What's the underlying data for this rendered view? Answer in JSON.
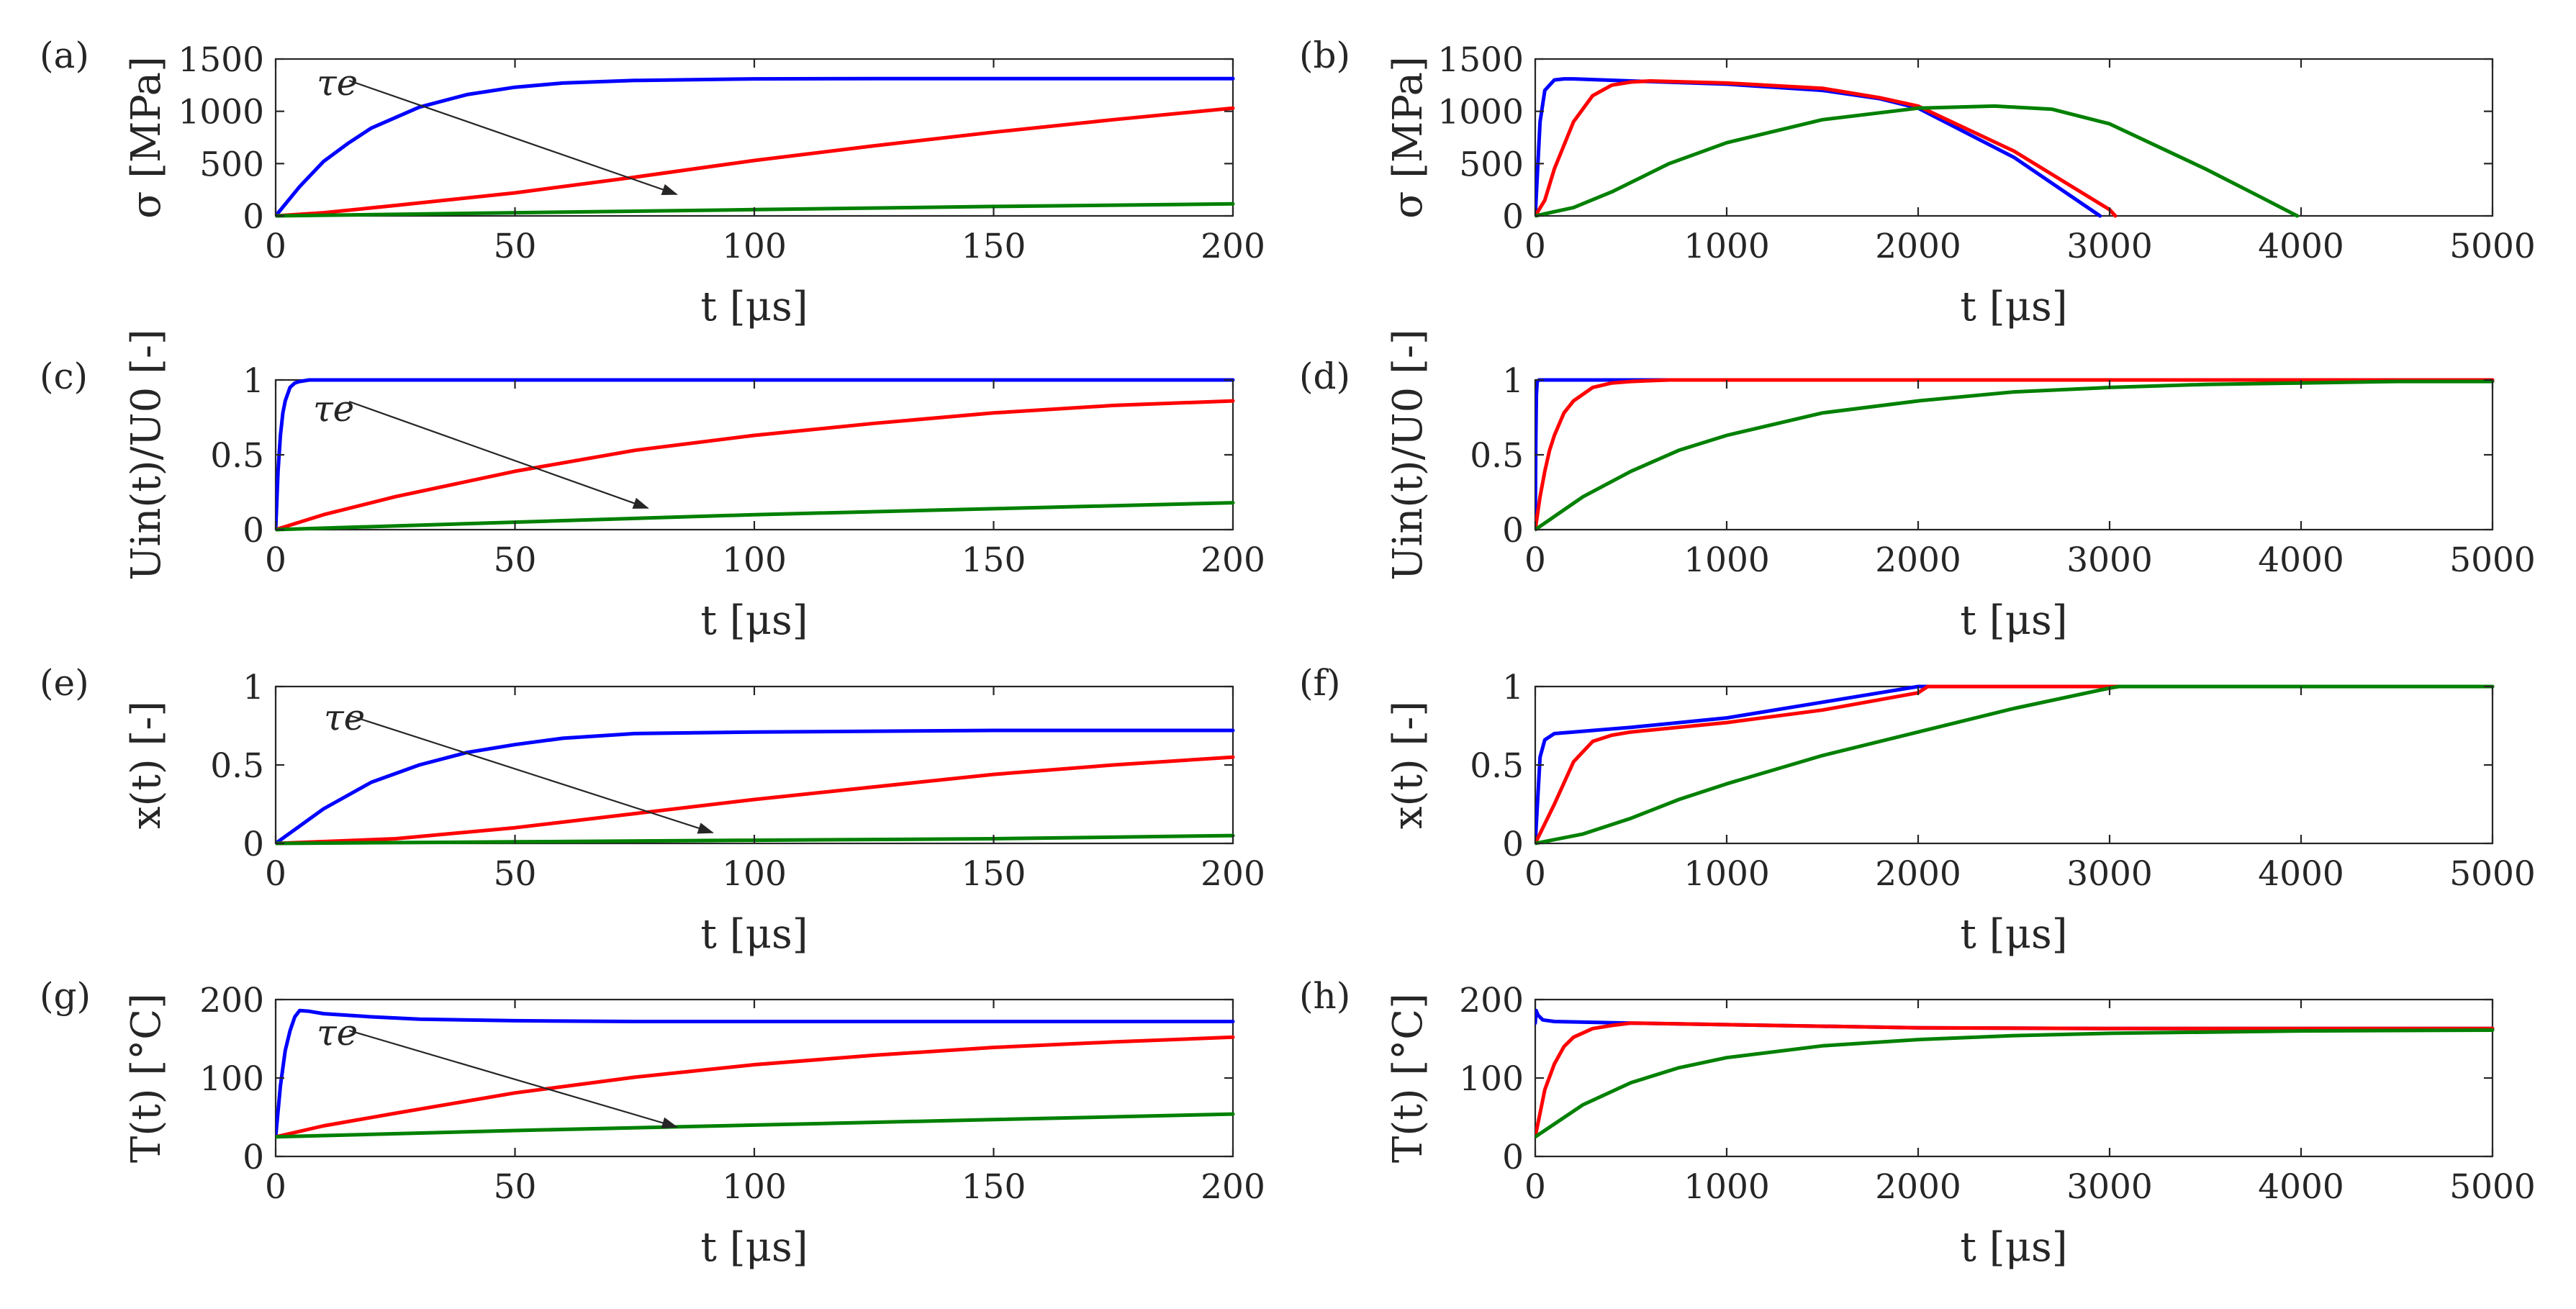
{
  "figure": {
    "series_colors": [
      "#0000ff",
      "#ff0000",
      "#008000"
    ]
  },
  "chart_data": [
    {
      "panel": "(a)",
      "type": "line",
      "xlabel": "t [μs]",
      "ylabel": "σ [MPa]",
      "xlim": [
        0,
        200
      ],
      "ylim": [
        0,
        1500
      ],
      "xticks": [
        0,
        50,
        100,
        150,
        200
      ],
      "yticks": [
        0,
        500,
        1000,
        1500
      ],
      "annotation": "τe",
      "series": [
        {
          "name": "blue",
          "color": "#0000ff",
          "x": [
            0,
            5,
            10,
            15,
            20,
            30,
            40,
            50,
            60,
            75,
            100,
            125,
            150,
            175,
            200
          ],
          "y": [
            0,
            280,
            520,
            690,
            840,
            1040,
            1160,
            1230,
            1270,
            1295,
            1310,
            1312,
            1313,
            1313,
            1313
          ]
        },
        {
          "name": "red",
          "color": "#ff0000",
          "x": [
            0,
            10,
            25,
            50,
            75,
            100,
            125,
            150,
            175,
            200
          ],
          "y": [
            0,
            30,
            100,
            220,
            370,
            530,
            670,
            800,
            920,
            1030
          ]
        },
        {
          "name": "green",
          "color": "#008000",
          "x": [
            0,
            50,
            100,
            150,
            200
          ],
          "y": [
            0,
            30,
            60,
            90,
            115
          ]
        }
      ]
    },
    {
      "panel": "(b)",
      "type": "line",
      "xlabel": "t [μs]",
      "ylabel": "σ [MPa]",
      "xlim": [
        0,
        5000
      ],
      "ylim": [
        0,
        1500
      ],
      "xticks": [
        0,
        1000,
        2000,
        3000,
        4000,
        5000
      ],
      "yticks": [
        0,
        500,
        1000,
        1500
      ],
      "series": [
        {
          "name": "blue",
          "color": "#0000ff",
          "x": [
            0,
            25,
            50,
            100,
            150,
            200,
            500,
            1000,
            1500,
            1800,
            2000,
            2500,
            2950
          ],
          "y": [
            0,
            900,
            1200,
            1300,
            1310,
            1310,
            1290,
            1260,
            1200,
            1120,
            1030,
            560,
            0
          ]
        },
        {
          "name": "red",
          "color": "#ff0000",
          "x": [
            0,
            50,
            100,
            200,
            300,
            400,
            500,
            600,
            1000,
            1500,
            1800,
            2000,
            2500,
            3000,
            3030
          ],
          "y": [
            0,
            150,
            450,
            900,
            1150,
            1250,
            1280,
            1290,
            1270,
            1220,
            1130,
            1050,
            620,
            60,
            0
          ]
        },
        {
          "name": "green",
          "color": "#008000",
          "x": [
            0,
            200,
            400,
            700,
            1000,
            1500,
            2000,
            2400,
            2700,
            3000,
            3500,
            3800,
            3980
          ],
          "y": [
            0,
            80,
            230,
            500,
            700,
            920,
            1030,
            1050,
            1020,
            880,
            450,
            170,
            0
          ]
        }
      ]
    },
    {
      "panel": "(c)",
      "type": "line",
      "xlabel": "t [μs]",
      "ylabel": "Uin(t)/U0 [-]",
      "xlim": [
        0,
        200
      ],
      "ylim": [
        0,
        1
      ],
      "xticks": [
        0,
        50,
        100,
        150,
        200
      ],
      "yticks": [
        0,
        0.5,
        1
      ],
      "annotation": "τe",
      "series": [
        {
          "name": "blue",
          "color": "#0000ff",
          "x": [
            0,
            0.5,
            1,
            1.5,
            2,
            3,
            4,
            5,
            7,
            10,
            200
          ],
          "y": [
            0,
            0.39,
            0.63,
            0.78,
            0.86,
            0.95,
            0.98,
            0.99,
            1,
            1,
            1
          ]
        },
        {
          "name": "red",
          "color": "#ff0000",
          "x": [
            0,
            10,
            25,
            50,
            75,
            100,
            125,
            150,
            175,
            200
          ],
          "y": [
            0,
            0.1,
            0.22,
            0.39,
            0.53,
            0.63,
            0.71,
            0.78,
            0.83,
            0.86
          ]
        },
        {
          "name": "green",
          "color": "#008000",
          "x": [
            0,
            50,
            100,
            150,
            200
          ],
          "y": [
            0,
            0.05,
            0.1,
            0.14,
            0.18
          ]
        }
      ]
    },
    {
      "panel": "(d)",
      "type": "line",
      "xlabel": "t [μs]",
      "ylabel": "Uin(t)/U0 [-]",
      "xlim": [
        0,
        5000
      ],
      "ylim": [
        0,
        1
      ],
      "xticks": [
        0,
        1000,
        2000,
        3000,
        4000,
        5000
      ],
      "yticks": [
        0,
        0.5,
        1
      ],
      "series": [
        {
          "name": "blue",
          "color": "#0000ff",
          "x": [
            0,
            3,
            6,
            10,
            20,
            5000
          ],
          "y": [
            0,
            0.6,
            0.9,
            0.99,
            1,
            1
          ]
        },
        {
          "name": "red",
          "color": "#ff0000",
          "x": [
            0,
            25,
            50,
            75,
            100,
            150,
            200,
            300,
            400,
            500,
            700,
            5000
          ],
          "y": [
            0,
            0.22,
            0.39,
            0.53,
            0.63,
            0.78,
            0.86,
            0.95,
            0.98,
            0.99,
            1,
            1
          ]
        },
        {
          "name": "green",
          "color": "#008000",
          "x": [
            0,
            250,
            500,
            750,
            1000,
            1500,
            2000,
            2500,
            3000,
            3500,
            4000,
            4500,
            5000
          ],
          "y": [
            0,
            0.22,
            0.39,
            0.53,
            0.63,
            0.78,
            0.86,
            0.92,
            0.95,
            0.97,
            0.98,
            0.99,
            0.99
          ]
        }
      ]
    },
    {
      "panel": "(e)",
      "type": "line",
      "xlabel": "t [μs]",
      "ylabel": "x(t) [-]",
      "xlim": [
        0,
        200
      ],
      "ylim": [
        0,
        1
      ],
      "xticks": [
        0,
        50,
        100,
        150,
        200
      ],
      "yticks": [
        0,
        0.5,
        1
      ],
      "annotation": "τe",
      "series": [
        {
          "name": "blue",
          "color": "#0000ff",
          "x": [
            0,
            10,
            20,
            30,
            40,
            50,
            60,
            75,
            100,
            150,
            200
          ],
          "y": [
            0,
            0.22,
            0.39,
            0.5,
            0.58,
            0.63,
            0.67,
            0.7,
            0.71,
            0.72,
            0.72
          ]
        },
        {
          "name": "red",
          "color": "#ff0000",
          "x": [
            0,
            25,
            50,
            75,
            100,
            125,
            150,
            175,
            200
          ],
          "y": [
            0,
            0.03,
            0.1,
            0.19,
            0.28,
            0.36,
            0.44,
            0.5,
            0.55
          ]
        },
        {
          "name": "green",
          "color": "#008000",
          "x": [
            0,
            50,
            100,
            150,
            200
          ],
          "y": [
            0,
            0.01,
            0.02,
            0.03,
            0.05
          ]
        }
      ]
    },
    {
      "panel": "(f)",
      "type": "line",
      "xlabel": "t [μs]",
      "ylabel": "x(t) [-]",
      "xlim": [
        0,
        5000
      ],
      "ylim": [
        0,
        1
      ],
      "xticks": [
        0,
        1000,
        2000,
        3000,
        4000,
        5000
      ],
      "yticks": [
        0,
        0.5,
        1
      ],
      "series": [
        {
          "name": "blue",
          "color": "#0000ff",
          "x": [
            0,
            25,
            50,
            100,
            200,
            500,
            1000,
            1500,
            1800,
            2000,
            5000
          ],
          "y": [
            0,
            0.55,
            0.66,
            0.7,
            0.71,
            0.74,
            0.8,
            0.9,
            0.96,
            1,
            1
          ]
        },
        {
          "name": "red",
          "color": "#ff0000",
          "x": [
            0,
            100,
            200,
            300,
            400,
            500,
            1000,
            1500,
            2000,
            2050,
            5000
          ],
          "y": [
            0,
            0.25,
            0.52,
            0.65,
            0.69,
            0.71,
            0.77,
            0.85,
            0.96,
            1,
            1
          ]
        },
        {
          "name": "green",
          "color": "#008000",
          "x": [
            0,
            250,
            500,
            750,
            1000,
            1500,
            2000,
            2500,
            3000,
            3050,
            5000
          ],
          "y": [
            0,
            0.06,
            0.16,
            0.28,
            0.38,
            0.56,
            0.71,
            0.86,
            0.99,
            1,
            1
          ]
        }
      ]
    },
    {
      "panel": "(g)",
      "type": "line",
      "xlabel": "t [μs]",
      "ylabel": "T(t) [°C]",
      "xlim": [
        0,
        200
      ],
      "ylim": [
        0,
        200
      ],
      "xticks": [
        0,
        50,
        100,
        150,
        200
      ],
      "yticks": [
        0,
        100,
        200
      ],
      "annotation": "τe",
      "series": [
        {
          "name": "blue",
          "color": "#0000ff",
          "x": [
            0,
            1,
            2,
            3,
            4,
            5,
            7,
            10,
            20,
            30,
            50,
            75,
            100,
            150,
            200
          ],
          "y": [
            25,
            90,
            135,
            160,
            178,
            186,
            185,
            182,
            178,
            175,
            173,
            172,
            172,
            172,
            172
          ]
        },
        {
          "name": "red",
          "color": "#ff0000",
          "x": [
            0,
            10,
            25,
            50,
            75,
            100,
            125,
            150,
            175,
            200
          ],
          "y": [
            25,
            39,
            55,
            81,
            101,
            117,
            129,
            139,
            146,
            152
          ]
        },
        {
          "name": "green",
          "color": "#008000",
          "x": [
            0,
            50,
            100,
            150,
            200
          ],
          "y": [
            25,
            33,
            40,
            47,
            54
          ]
        }
      ]
    },
    {
      "panel": "(h)",
      "type": "line",
      "xlabel": "t [μs]",
      "ylabel": "T(t) [°C]",
      "xlim": [
        0,
        5000
      ],
      "ylim": [
        0,
        200
      ],
      "xticks": [
        0,
        1000,
        2000,
        3000,
        4000,
        5000
      ],
      "yticks": [
        0,
        100,
        200
      ],
      "series": [
        {
          "name": "blue",
          "color": "#0000ff",
          "x": [
            0,
            5,
            15,
            40,
            100,
            500,
            1000,
            2000,
            3000,
            5000
          ],
          "y": [
            170,
            186,
            180,
            174,
            172,
            170,
            168,
            164,
            163,
            163
          ]
        },
        {
          "name": "red",
          "color": "#ff0000",
          "x": [
            0,
            50,
            100,
            150,
            200,
            300,
            400,
            500,
            1000,
            2000,
            3000,
            5000
          ],
          "y": [
            25,
            85,
            118,
            140,
            152,
            163,
            167,
            170,
            168,
            164,
            163,
            163
          ]
        },
        {
          "name": "green",
          "color": "#008000",
          "x": [
            0,
            250,
            500,
            750,
            1000,
            1500,
            2000,
            2500,
            3000,
            4000,
            5000
          ],
          "y": [
            25,
            66,
            94,
            113,
            126,
            141,
            149,
            154,
            157,
            160,
            161
          ]
        }
      ]
    }
  ]
}
